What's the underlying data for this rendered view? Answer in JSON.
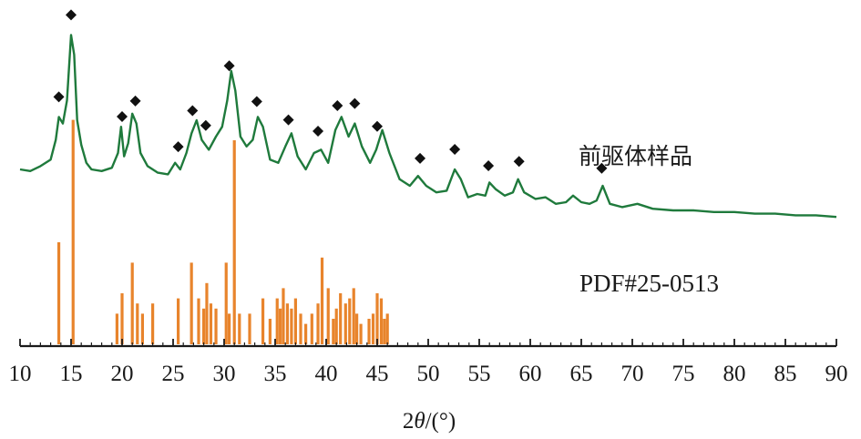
{
  "chart_data": {
    "type": "line",
    "xlabel_parts": {
      "pre": "2",
      "italic": "θ",
      "post": "/(°)"
    },
    "ylabel": "",
    "xlim": [
      10,
      90
    ],
    "xticks": [
      "10",
      "15",
      "20",
      "25",
      "30",
      "35",
      "40",
      "45",
      "50",
      "55",
      "60",
      "65",
      "70",
      "75",
      "80",
      "85",
      "90"
    ],
    "grid": false,
    "series": [
      {
        "name": "前驱体样品",
        "color": "#1f7a3c",
        "x": [
          10,
          11,
          12,
          13,
          13.5,
          13.8,
          14.2,
          14.6,
          15.0,
          15.3,
          15.6,
          16.0,
          16.5,
          17,
          18,
          19,
          19.6,
          19.9,
          20.2,
          20.6,
          21.0,
          21.4,
          21.8,
          22.5,
          23.5,
          24.5,
          25.2,
          25.7,
          26.3,
          26.8,
          27.3,
          27.8,
          28.5,
          29.2,
          29.8,
          30.3,
          30.7,
          31.1,
          31.6,
          32.2,
          32.8,
          33.3,
          33.8,
          34.5,
          35.3,
          36.0,
          36.6,
          37.2,
          38.0,
          38.8,
          39.5,
          40.2,
          40.9,
          41.5,
          42.2,
          42.8,
          43.5,
          44.3,
          44.9,
          45.5,
          46.2,
          47.2,
          48.2,
          49.0,
          49.8,
          50.8,
          51.8,
          52.6,
          53.2,
          53.9,
          54.8,
          55.6,
          56.0,
          56.6,
          57.5,
          58.3,
          58.8,
          59.4,
          60.5,
          61.5,
          62.5,
          63.5,
          64.2,
          65.0,
          65.8,
          66.5,
          67.1,
          67.8,
          69.0,
          70.5,
          72.0,
          74.0,
          76.0,
          78.0,
          80.0,
          82.0,
          84.0,
          86.0,
          88.0,
          90.0
        ],
        "y": [
          30,
          29,
          32,
          36,
          48,
          62,
          58,
          72,
          112,
          100,
          60,
          45,
          34,
          30,
          29,
          31,
          40,
          56,
          38,
          46,
          64,
          58,
          40,
          32,
          28,
          27,
          34,
          30,
          40,
          52,
          60,
          48,
          42,
          50,
          56,
          72,
          90,
          78,
          50,
          44,
          48,
          62,
          56,
          36,
          34,
          44,
          52,
          38,
          30,
          40,
          42,
          34,
          54,
          62,
          50,
          58,
          44,
          34,
          42,
          54,
          40,
          24,
          20,
          26,
          20,
          16,
          17,
          30,
          24,
          13,
          15,
          14,
          22,
          18,
          14,
          16,
          24,
          16,
          12,
          13,
          9,
          10,
          14,
          10,
          9,
          11,
          20,
          9,
          7,
          9,
          6,
          5,
          5,
          4,
          4,
          3,
          3,
          2,
          2,
          1
        ]
      },
      {
        "name": "PDF#25-0513",
        "color": "#e8842c",
        "type": "bar",
        "x": [
          13.8,
          15.2,
          19.5,
          20.0,
          21.0,
          21.5,
          22.0,
          23.0,
          25.5,
          26.8,
          27.5,
          28.0,
          28.3,
          28.7,
          29.2,
          30.2,
          30.5,
          31.0,
          31.5,
          32.5,
          33.8,
          34.5,
          35.2,
          35.5,
          35.8,
          36.2,
          36.6,
          37.0,
          37.5,
          38.0,
          38.6,
          39.2,
          39.6,
          40.2,
          40.7,
          41.0,
          41.4,
          41.9,
          42.3,
          42.7,
          43.0,
          43.4,
          44.2,
          44.6,
          45.0,
          45.4,
          45.7,
          46.0
        ],
        "values": [
          100,
          220,
          30,
          50,
          80,
          40,
          30,
          40,
          45,
          80,
          45,
          35,
          60,
          40,
          35,
          80,
          30,
          200,
          30,
          30,
          45,
          25,
          45,
          35,
          55,
          40,
          35,
          45,
          30,
          20,
          30,
          40,
          85,
          55,
          25,
          35,
          50,
          40,
          45,
          55,
          30,
          20,
          25,
          30,
          50,
          45,
          25,
          30
        ]
      }
    ]
  },
  "annotations": {
    "diamond_positions": [
      13.8,
      15.0,
      20.0,
      21.3,
      25.5,
      26.9,
      28.2,
      30.5,
      33.2,
      36.3,
      39.2,
      41.1,
      42.8,
      45.0,
      49.2,
      52.6,
      55.9,
      58.9,
      67.0
    ],
    "marker": "diamond"
  }
}
